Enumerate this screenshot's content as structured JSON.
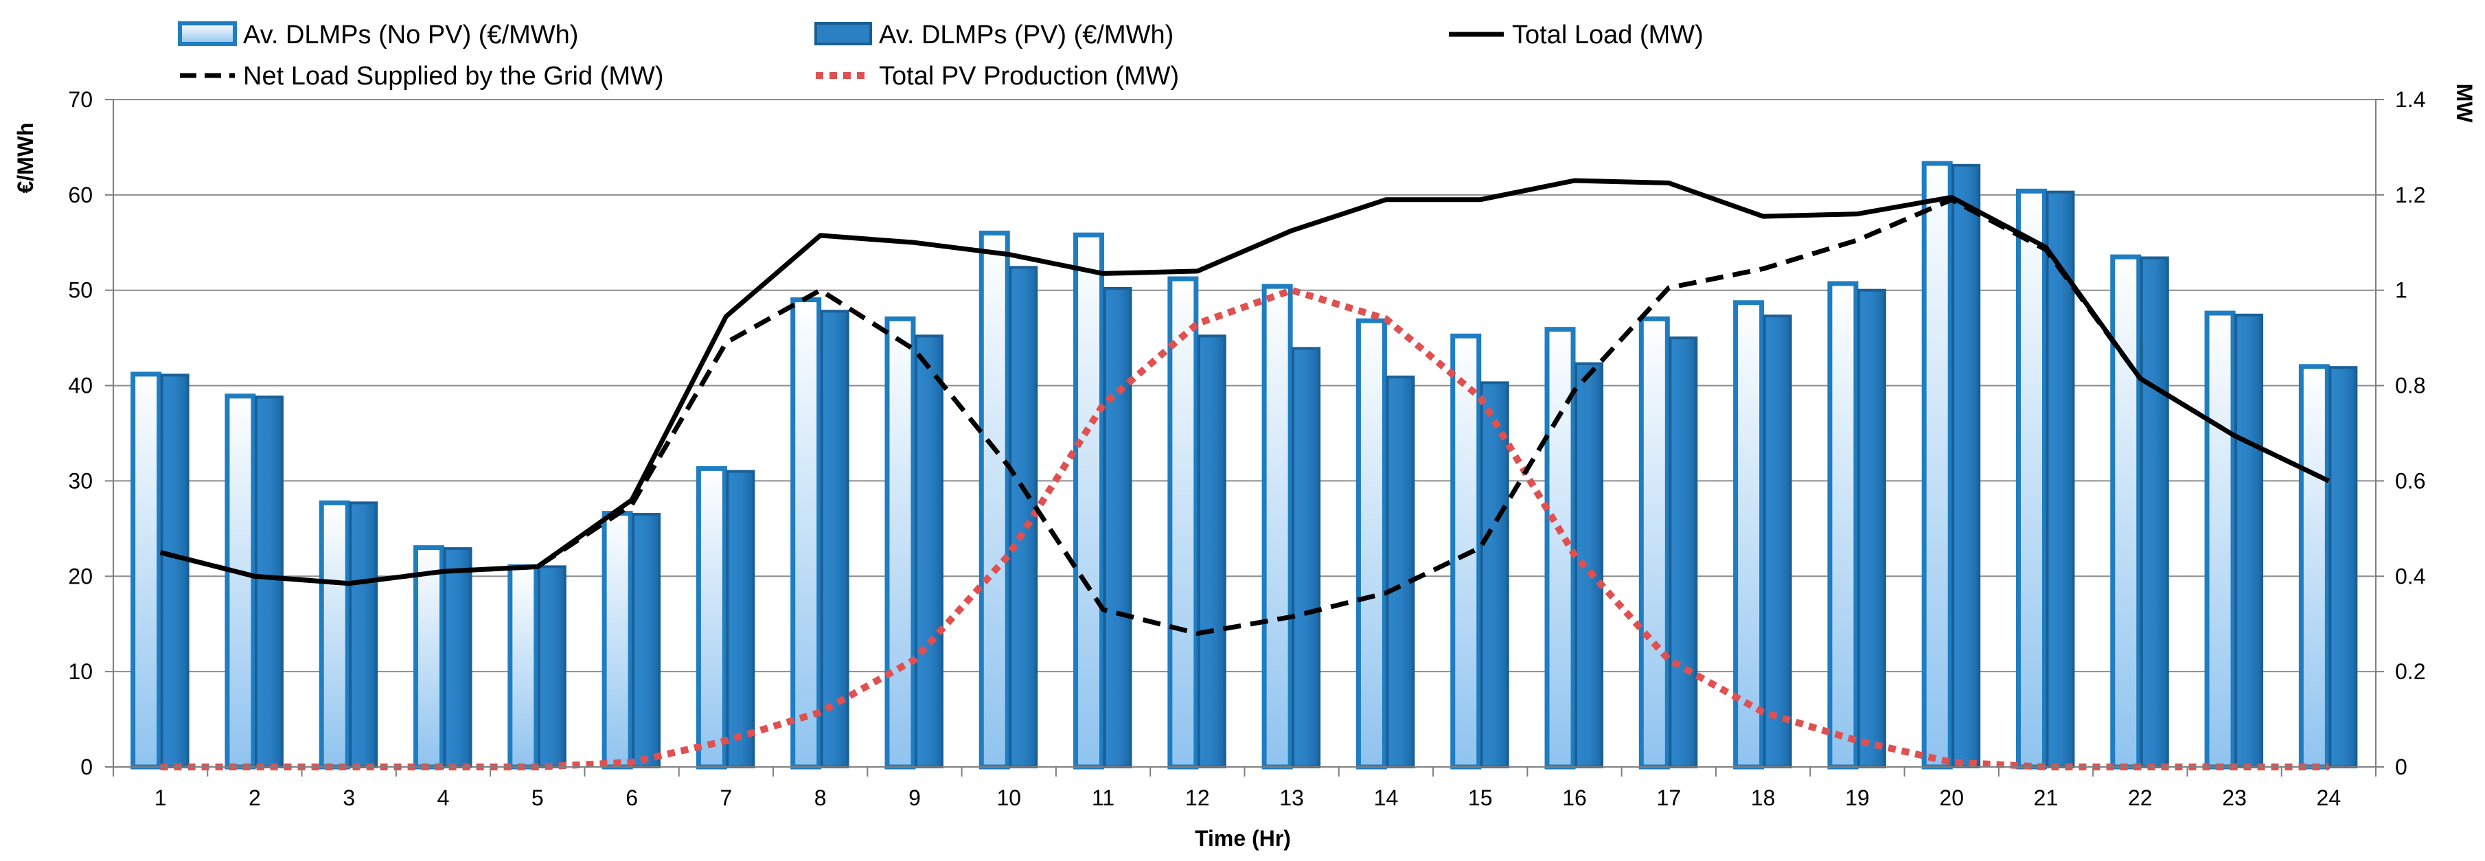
{
  "chart_data": {
    "type": "bar",
    "xlabel": "Time (Hr)",
    "ylabel": "€/MWh",
    "y2label": "MW",
    "ylim": [
      0,
      70
    ],
    "y2lim": [
      0,
      1.4
    ],
    "yticks": [
      "0",
      "10",
      "20",
      "30",
      "40",
      "50",
      "60",
      "70"
    ],
    "y2ticks": [
      "0",
      "0.2",
      "0.4",
      "0.6",
      "0.8",
      "1",
      "1.2",
      "1.4"
    ],
    "grid": true,
    "legend_position": "top",
    "categories": [
      "1",
      "2",
      "3",
      "4",
      "5",
      "6",
      "7",
      "8",
      "9",
      "10",
      "11",
      "12",
      "13",
      "14",
      "15",
      "16",
      "17",
      "18",
      "19",
      "20",
      "21",
      "22",
      "23",
      "24"
    ],
    "series": [
      {
        "name": "Av. DLMPs (No PV) (€/MWh)",
        "type": "bar",
        "axis": "left",
        "color": "#1f7dc2",
        "values": [
          41.2,
          38.9,
          27.7,
          23.0,
          21.0,
          26.6,
          31.3,
          49.0,
          47.0,
          56.0,
          55.8,
          51.2,
          50.4,
          46.8,
          45.2,
          45.9,
          47.0,
          48.7,
          50.7,
          63.3,
          60.4,
          53.5,
          47.6,
          42.0
        ]
      },
      {
        "name": "Av. DLMPs  (PV) (€/MWh)",
        "type": "bar",
        "axis": "left",
        "color": "#2275b9",
        "values": [
          41.1,
          38.8,
          27.7,
          22.9,
          21.0,
          26.5,
          31.0,
          47.8,
          45.2,
          52.4,
          50.2,
          45.2,
          43.9,
          40.9,
          40.3,
          42.3,
          45.0,
          47.3,
          50.0,
          63.1,
          60.3,
          53.4,
          47.4,
          41.9
        ]
      },
      {
        "name": "Total Load (MW)",
        "type": "line",
        "axis": "right",
        "color": "#000000",
        "style": "solid",
        "values": [
          0.45,
          0.4,
          0.385,
          0.41,
          0.42,
          0.56,
          0.945,
          1.115,
          1.1,
          1.075,
          1.035,
          1.04,
          1.125,
          1.19,
          1.19,
          1.23,
          1.225,
          1.155,
          1.16,
          1.195,
          1.09,
          0.815,
          0.695,
          0.6
        ]
      },
      {
        "name": "Net Load Supplied by the Grid (MW)",
        "type": "line",
        "axis": "right",
        "color": "#000000",
        "style": "dashed",
        "values": [
          0.45,
          0.4,
          0.385,
          0.41,
          0.42,
          0.55,
          0.89,
          1.0,
          0.875,
          0.63,
          0.33,
          0.28,
          0.315,
          0.365,
          0.46,
          0.79,
          1.005,
          1.045,
          1.105,
          1.19,
          1.085,
          0.815,
          0.695,
          0.6
        ]
      },
      {
        "name": "Total PV Production (MW)",
        "type": "line",
        "axis": "right",
        "color": "#e05050",
        "style": "dotted",
        "values": [
          0.0,
          0.0,
          0.0,
          0.0,
          0.0,
          0.01,
          0.055,
          0.115,
          0.225,
          0.445,
          0.76,
          0.93,
          1.0,
          0.94,
          0.775,
          0.445,
          0.225,
          0.115,
          0.055,
          0.01,
          0.0,
          0.0,
          0.0,
          0.0
        ]
      }
    ]
  }
}
